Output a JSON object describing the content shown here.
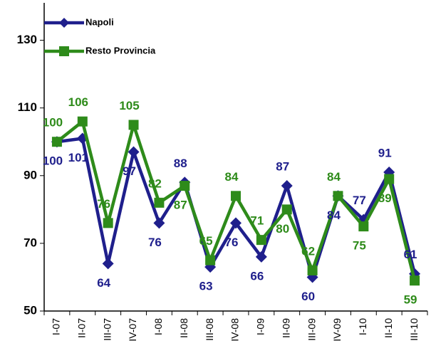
{
  "chart_data": {
    "type": "line",
    "categories": [
      "I-07",
      "II-07",
      "III-07",
      "IV-07",
      "I-08",
      "II-08",
      "III-08",
      "IV-08",
      "I-09",
      "II-09",
      "III-09",
      "IV-09",
      "I-10",
      "II-10",
      "III-10"
    ],
    "series": [
      {
        "name": "Napoli",
        "color": "#1f1f8c",
        "values": [
          100,
          101,
          64,
          97,
          76,
          88,
          63,
          76,
          66,
          87,
          60,
          84,
          77,
          91,
          61
        ]
      },
      {
        "name": "Resto Provincia",
        "color": "#2e8b1a",
        "values": [
          100,
          106,
          76,
          105,
          82,
          87,
          65,
          84,
          71,
          80,
          62,
          84,
          75,
          89,
          59
        ]
      }
    ],
    "ylim": [
      50,
      140
    ],
    "yticks": [
      50,
      70,
      90,
      110,
      130
    ],
    "legend": "top-left"
  }
}
